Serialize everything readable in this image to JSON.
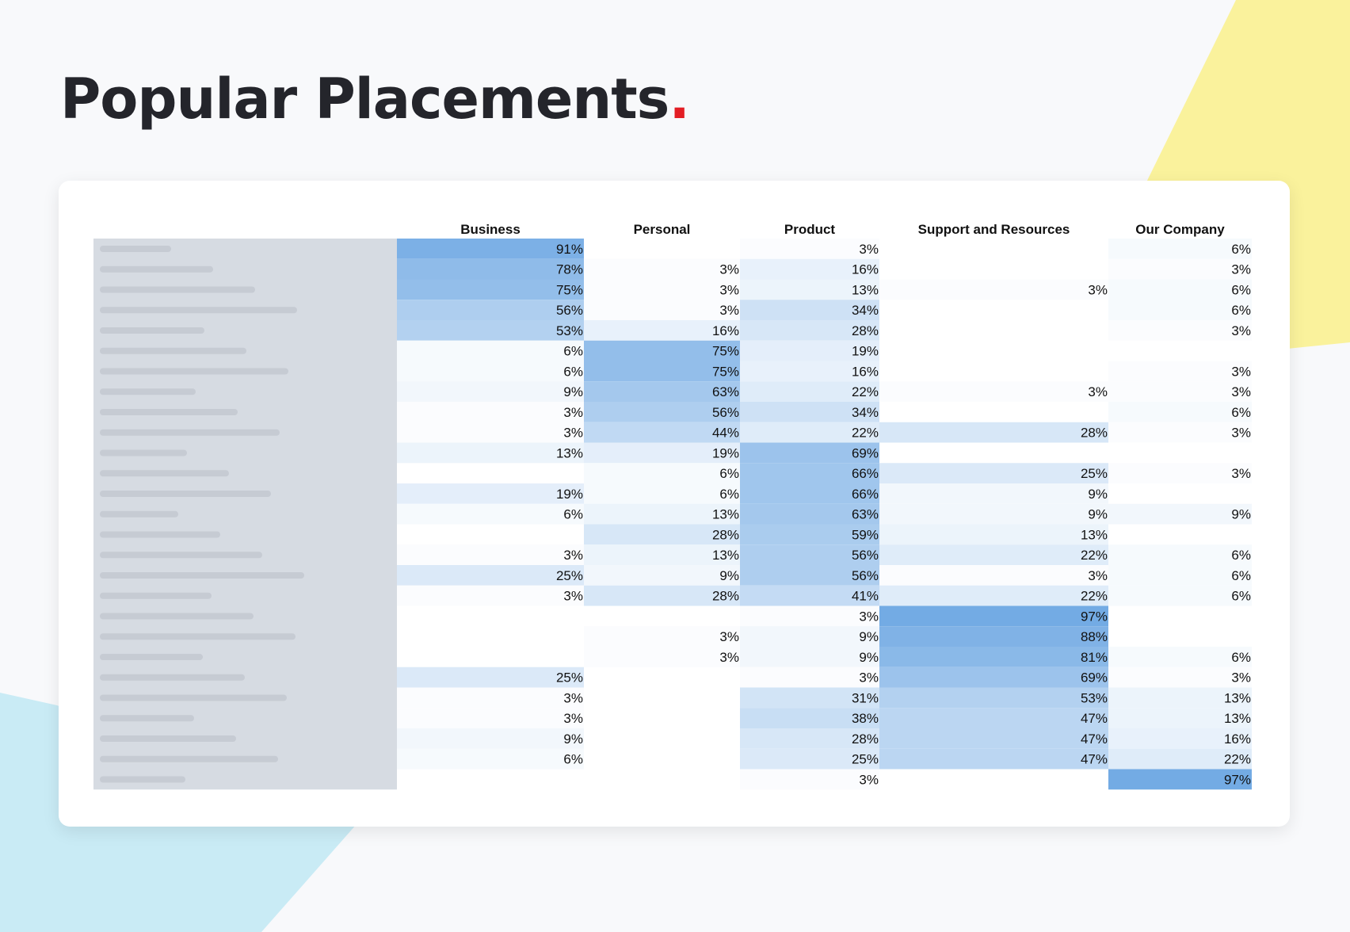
{
  "page": {
    "title": "Popular Placements",
    "title_accent": ".",
    "accent_color": "#e31e24",
    "deco_colors": [
      "#faf29c",
      "#c9ebf5"
    ]
  },
  "chart_data": {
    "type": "heatmap",
    "columns": [
      "Business",
      "Personal",
      "Product",
      "Support and Resources",
      "Our Company"
    ],
    "row_labels_visible": false,
    "value_unit": "%",
    "color_scale": {
      "low": "#ffffff",
      "high": "#6fa8e3"
    },
    "values": [
      [
        91,
        null,
        3,
        null,
        6
      ],
      [
        78,
        3,
        16,
        null,
        3
      ],
      [
        75,
        3,
        13,
        3,
        6
      ],
      [
        56,
        3,
        34,
        null,
        6
      ],
      [
        53,
        16,
        28,
        null,
        3
      ],
      [
        6,
        75,
        19,
        null,
        null
      ],
      [
        6,
        75,
        16,
        null,
        3
      ],
      [
        9,
        63,
        22,
        3,
        3
      ],
      [
        3,
        56,
        34,
        null,
        6
      ],
      [
        3,
        44,
        22,
        28,
        3
      ],
      [
        13,
        19,
        69,
        null,
        null
      ],
      [
        null,
        6,
        66,
        25,
        3
      ],
      [
        19,
        6,
        66,
        9,
        null
      ],
      [
        6,
        13,
        63,
        9,
        9
      ],
      [
        null,
        28,
        59,
        13,
        null
      ],
      [
        3,
        13,
        56,
        22,
        6
      ],
      [
        25,
        9,
        56,
        3,
        6
      ],
      [
        3,
        28,
        41,
        22,
        6
      ],
      [
        null,
        null,
        3,
        97,
        null
      ],
      [
        null,
        3,
        9,
        88,
        null
      ],
      [
        null,
        3,
        9,
        81,
        6
      ],
      [
        25,
        null,
        3,
        69,
        3
      ],
      [
        3,
        null,
        31,
        53,
        13
      ],
      [
        3,
        null,
        38,
        47,
        13
      ],
      [
        9,
        null,
        28,
        47,
        16
      ],
      [
        6,
        null,
        25,
        47,
        22
      ],
      [
        null,
        null,
        3,
        null,
        97
      ]
    ]
  }
}
